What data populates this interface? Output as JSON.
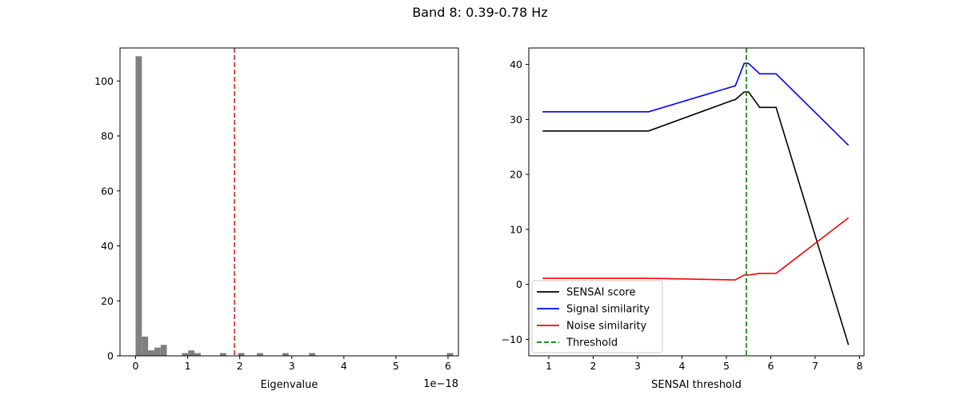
{
  "figure": {
    "title": "Band 8: 0.39-0.78 Hz"
  },
  "chart_data": [
    {
      "type": "bar",
      "subtype": "histogram",
      "xlabel": "Eigenvalue",
      "ylabel": "",
      "x_multiplier_label": "1e−18",
      "xlim": [
        -0.3,
        6.2
      ],
      "ylim": [
        0,
        112
      ],
      "xticks": [
        0,
        1,
        2,
        3,
        4,
        5,
        6
      ],
      "yticks": [
        0,
        20,
        40,
        60,
        80,
        100
      ],
      "bar_color": "#808080",
      "bin_width": 0.12,
      "bins": [
        {
          "x": 0.0,
          "count": 109
        },
        {
          "x": 0.12,
          "count": 7
        },
        {
          "x": 0.24,
          "count": 2
        },
        {
          "x": 0.36,
          "count": 3
        },
        {
          "x": 0.48,
          "count": 4
        },
        {
          "x": 0.89,
          "count": 1
        },
        {
          "x": 1.01,
          "count": 2
        },
        {
          "x": 1.13,
          "count": 1
        },
        {
          "x": 1.62,
          "count": 1
        },
        {
          "x": 1.97,
          "count": 1
        },
        {
          "x": 2.33,
          "count": 1
        },
        {
          "x": 2.82,
          "count": 1
        },
        {
          "x": 3.33,
          "count": 1
        },
        {
          "x": 5.98,
          "count": 1
        }
      ],
      "threshold": {
        "x": 1.9,
        "color": "#d62728",
        "style": "dashed"
      }
    },
    {
      "type": "line",
      "xlabel": "SENSAI threshold",
      "ylabel": "",
      "xlim": [
        0.55,
        8.1
      ],
      "ylim": [
        -13,
        43
      ],
      "xticks": [
        1,
        2,
        3,
        4,
        5,
        6,
        7,
        8
      ],
      "yticks": [
        -10,
        0,
        10,
        20,
        30,
        40
      ],
      "legend": {
        "position": "lower-left"
      },
      "series": [
        {
          "name": "SENSAI score",
          "color": "#000000",
          "x": [
            0.86,
            3.25,
            5.15,
            5.2,
            5.4,
            5.5,
            5.75,
            6.12,
            7.75
          ],
          "y": [
            27.9,
            27.9,
            33.5,
            33.6,
            35.0,
            35.0,
            32.2,
            32.2,
            -11.0
          ]
        },
        {
          "name": "Signal similarity",
          "color": "#0000ff",
          "x": [
            0.86,
            3.25,
            5.15,
            5.2,
            5.4,
            5.5,
            5.75,
            6.12,
            7.75
          ],
          "y": [
            31.4,
            31.4,
            36.0,
            36.1,
            40.2,
            40.2,
            38.3,
            38.3,
            25.3
          ]
        },
        {
          "name": "Noise similarity",
          "color": "#ff0000",
          "x": [
            0.86,
            3.25,
            5.2,
            5.4,
            5.5,
            5.75,
            6.12,
            7.75
          ],
          "y": [
            1.1,
            1.1,
            0.8,
            1.7,
            1.7,
            2.0,
            2.0,
            12.1
          ]
        }
      ],
      "threshold": {
        "name": "Threshold",
        "x": 5.45,
        "color": "#008000",
        "style": "dashed"
      }
    }
  ]
}
